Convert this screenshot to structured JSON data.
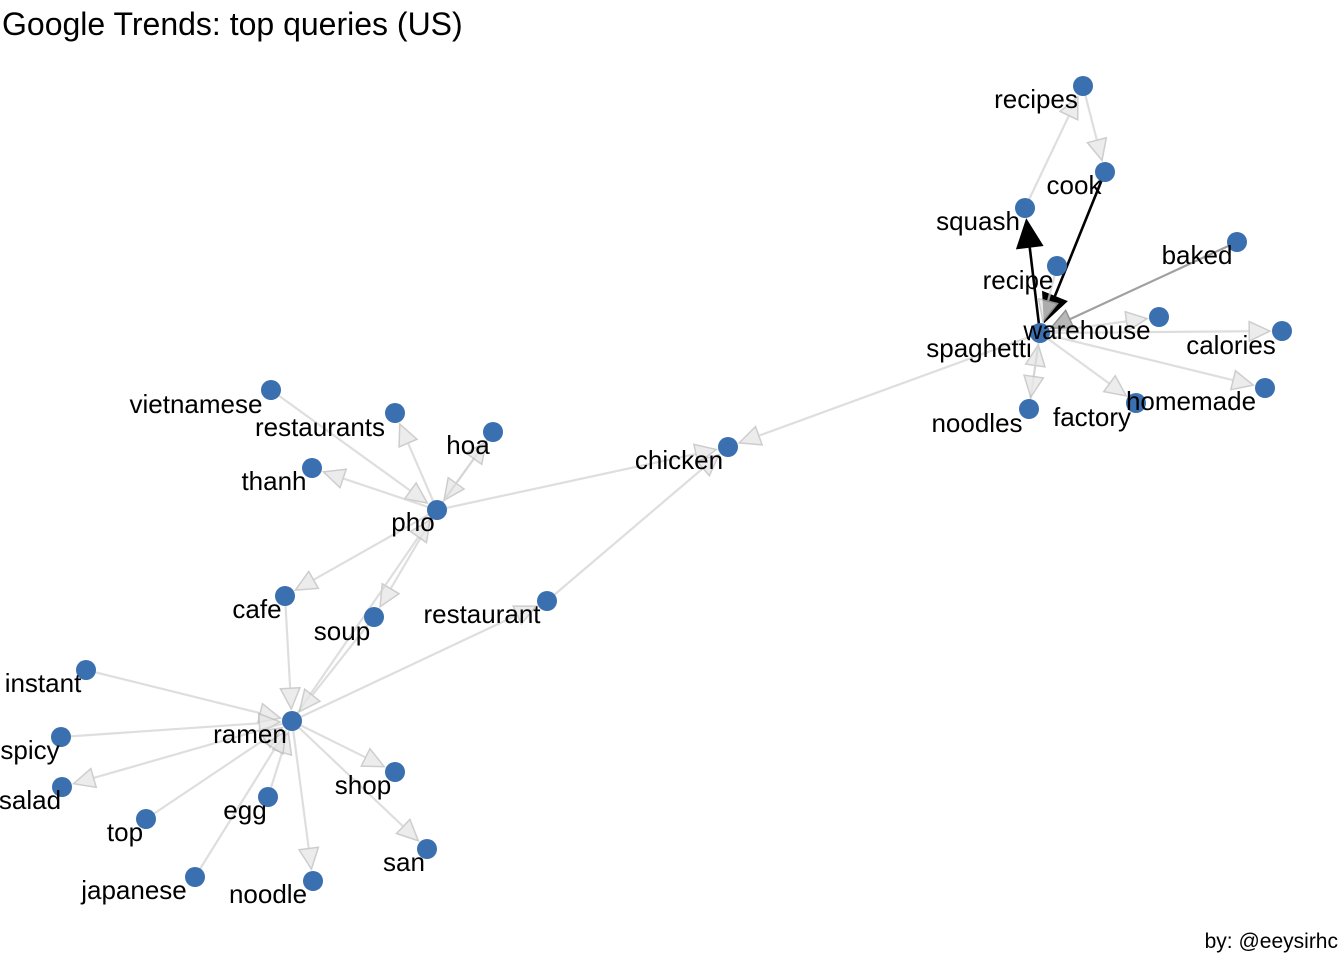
{
  "title": "Google Trends: top queries (US)",
  "caption": "by: @eeysirhc",
  "colors": {
    "node": "#3A6FB0",
    "edge_weak": "#d4d4d4",
    "edge_medium": "#9b9b9b",
    "edge_strong": "#000000",
    "text": "#000000"
  },
  "nodes": [
    {
      "id": "recipes",
      "label": "recipes"
    },
    {
      "id": "cook",
      "label": "cook"
    },
    {
      "id": "squash",
      "label": "squash"
    },
    {
      "id": "baked",
      "label": "baked"
    },
    {
      "id": "recipe",
      "label": "recipe"
    },
    {
      "id": "warehouse",
      "label": "warehouse"
    },
    {
      "id": "calories",
      "label": "calories"
    },
    {
      "id": "spaghetti",
      "label": "spaghetti"
    },
    {
      "id": "homemade",
      "label": "homemade"
    },
    {
      "id": "noodles",
      "label": "noodles"
    },
    {
      "id": "factory",
      "label": "factory"
    },
    {
      "id": "chicken",
      "label": "chicken"
    },
    {
      "id": "vietnamese",
      "label": "vietnamese"
    },
    {
      "id": "restaurants",
      "label": "restaurants"
    },
    {
      "id": "hoa",
      "label": "hoa"
    },
    {
      "id": "thanh",
      "label": "thanh"
    },
    {
      "id": "pho",
      "label": "pho"
    },
    {
      "id": "cafe",
      "label": "cafe"
    },
    {
      "id": "soup",
      "label": "soup"
    },
    {
      "id": "restaurant",
      "label": "restaurant"
    },
    {
      "id": "instant",
      "label": "instant"
    },
    {
      "id": "ramen",
      "label": "ramen"
    },
    {
      "id": "spicy",
      "label": "spicy"
    },
    {
      "id": "salad",
      "label": "salad"
    },
    {
      "id": "shop",
      "label": "shop"
    },
    {
      "id": "egg",
      "label": "egg"
    },
    {
      "id": "top",
      "label": "top"
    },
    {
      "id": "san",
      "label": "san"
    },
    {
      "id": "japanese",
      "label": "japanese"
    },
    {
      "id": "noodle",
      "label": "noodle"
    }
  ],
  "edges": [
    {
      "from": "squash",
      "to": "recipes",
      "strength": "weak"
    },
    {
      "from": "recipes",
      "to": "cook",
      "strength": "weak"
    },
    {
      "from": "cook",
      "to": "spaghetti",
      "strength": "strong"
    },
    {
      "from": "spaghetti",
      "to": "squash",
      "strength": "strong"
    },
    {
      "from": "recipe",
      "to": "spaghetti",
      "strength": "weak"
    },
    {
      "from": "baked",
      "to": "spaghetti",
      "strength": "medium"
    },
    {
      "from": "spaghetti",
      "to": "warehouse",
      "strength": "weak"
    },
    {
      "from": "spaghetti",
      "to": "calories",
      "strength": "weak"
    },
    {
      "from": "spaghetti",
      "to": "homemade",
      "strength": "weak"
    },
    {
      "from": "spaghetti",
      "to": "factory",
      "strength": "weak"
    },
    {
      "from": "noodles",
      "to": "spaghetti",
      "strength": "weak"
    },
    {
      "from": "spaghetti",
      "to": "noodles",
      "strength": "weak"
    },
    {
      "from": "spaghetti",
      "to": "chicken",
      "strength": "weak"
    },
    {
      "from": "pho",
      "to": "chicken",
      "strength": "weak"
    },
    {
      "from": "vietnamese",
      "to": "pho",
      "strength": "weak"
    },
    {
      "from": "pho",
      "to": "restaurants",
      "strength": "weak"
    },
    {
      "from": "hoa",
      "to": "pho",
      "strength": "weak"
    },
    {
      "from": "pho",
      "to": "hoa",
      "strength": "weak"
    },
    {
      "from": "pho",
      "to": "thanh",
      "strength": "weak"
    },
    {
      "from": "pho",
      "to": "cafe",
      "strength": "weak"
    },
    {
      "from": "pho",
      "to": "soup",
      "strength": "weak"
    },
    {
      "from": "ramen",
      "to": "pho",
      "strength": "weak"
    },
    {
      "from": "soup",
      "to": "ramen",
      "strength": "weak"
    },
    {
      "from": "cafe",
      "to": "ramen",
      "strength": "weak"
    },
    {
      "from": "ramen",
      "to": "restaurant",
      "strength": "weak"
    },
    {
      "from": "restaurant",
      "to": "chicken",
      "strength": "weak"
    },
    {
      "from": "instant",
      "to": "ramen",
      "strength": "weak"
    },
    {
      "from": "spicy",
      "to": "ramen",
      "strength": "weak"
    },
    {
      "from": "ramen",
      "to": "salad",
      "strength": "weak"
    },
    {
      "from": "ramen",
      "to": "shop",
      "strength": "weak"
    },
    {
      "from": "ramen",
      "to": "san",
      "strength": "weak"
    },
    {
      "from": "egg",
      "to": "ramen",
      "strength": "weak"
    },
    {
      "from": "top",
      "to": "ramen",
      "strength": "weak"
    },
    {
      "from": "japanese",
      "to": "ramen",
      "strength": "weak"
    },
    {
      "from": "ramen",
      "to": "noodle",
      "strength": "weak"
    }
  ]
}
